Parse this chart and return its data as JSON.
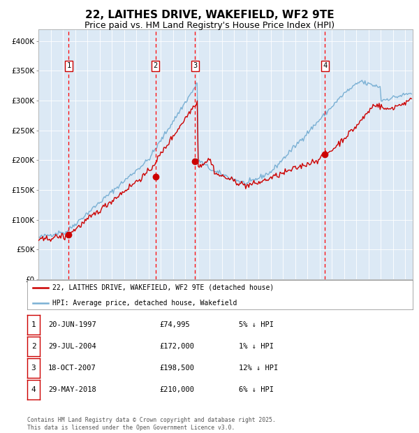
{
  "title": "22, LAITHES DRIVE, WAKEFIELD, WF2 9TE",
  "subtitle": "Price paid vs. HM Land Registry's House Price Index (HPI)",
  "title_fontsize": 11,
  "subtitle_fontsize": 9,
  "plot_bg_color": "#dce9f5",
  "fig_bg_color": "#ffffff",
  "ylim": [
    0,
    420000
  ],
  "yticks": [
    0,
    50000,
    100000,
    150000,
    200000,
    250000,
    300000,
    350000,
    400000
  ],
  "ytick_labels": [
    "£0",
    "£50K",
    "£100K",
    "£150K",
    "£200K",
    "£250K",
    "£300K",
    "£350K",
    "£400K"
  ],
  "sale_dates": [
    1997.47,
    2004.57,
    2007.8,
    2018.41
  ],
  "sale_prices": [
    74995,
    172000,
    198500,
    210000
  ],
  "sale_labels": [
    "1",
    "2",
    "3",
    "4"
  ],
  "red_line_color": "#cc0000",
  "blue_line_color": "#7ab0d4",
  "sale_dot_color": "#cc0000",
  "vline_color": "#ff0000",
  "legend_entries": [
    "22, LAITHES DRIVE, WAKEFIELD, WF2 9TE (detached house)",
    "HPI: Average price, detached house, Wakefield"
  ],
  "table_rows": [
    [
      "1",
      "20-JUN-1997",
      "£74,995",
      "5% ↓ HPI"
    ],
    [
      "2",
      "29-JUL-2004",
      "£172,000",
      "1% ↓ HPI"
    ],
    [
      "3",
      "18-OCT-2007",
      "£198,500",
      "12% ↓ HPI"
    ],
    [
      "4",
      "29-MAY-2018",
      "£210,000",
      "6% ↓ HPI"
    ]
  ],
  "footer_text": "Contains HM Land Registry data © Crown copyright and database right 2025.\nThis data is licensed under the Open Government Licence v3.0."
}
